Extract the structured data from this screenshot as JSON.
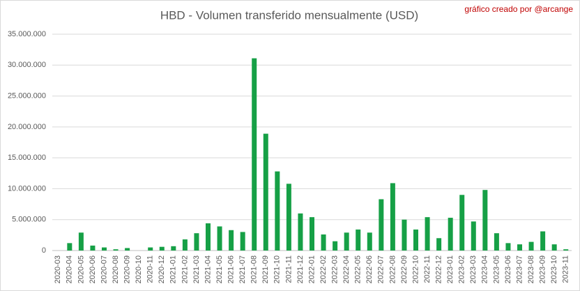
{
  "chart_data": {
    "type": "bar",
    "title": "HBD - Volumen transferido mensualmente (USD)",
    "annotation": "gráfico creado por @arcange",
    "categories": [
      "2020-03",
      "2020-04",
      "2020-05",
      "2020-06",
      "2020-07",
      "2020-08",
      "2020-09",
      "2020-10",
      "2020-11",
      "2020-12",
      "2021-01",
      "2021-02",
      "2021-03",
      "2021-04",
      "2021-05",
      "2021-06",
      "2021-07",
      "2021-08",
      "2021-09",
      "2021-10",
      "2021-11",
      "2021-12",
      "2022-01",
      "2022-02",
      "2022-03",
      "2022-04",
      "2022-05",
      "2022-06",
      "2022-07",
      "2022-08",
      "2022-09",
      "2022-10",
      "2022-11",
      "2022-12",
      "2023-01",
      "2023-02",
      "2023-03",
      "2023-04",
      "2023-05",
      "2023-06",
      "2023-07",
      "2023-08",
      "2023-09",
      "2023-10",
      "2023-11"
    ],
    "values": [
      0,
      1200000,
      2900000,
      800000,
      500000,
      200000,
      400000,
      0,
      500000,
      600000,
      700000,
      1800000,
      2800000,
      4400000,
      3900000,
      3300000,
      3000000,
      31100000,
      18900000,
      12800000,
      10800000,
      6000000,
      5400000,
      2600000,
      1500000,
      2900000,
      3400000,
      2900000,
      8300000,
      10900000,
      5000000,
      3400000,
      5400000,
      2000000,
      5300000,
      9000000,
      4700000,
      9800000,
      2800000,
      1200000,
      1000000,
      1400000,
      3100000,
      1000000,
      200000
    ],
    "color": "#16a046",
    "ylim": [
      0,
      35000000
    ],
    "yticks": [
      0,
      {
        "value": 5000000,
        "label": "5.000.000"
      },
      {
        "value": 10000000,
        "label": "10.000.000"
      },
      {
        "value": 15000000,
        "label": "15.000.000"
      },
      {
        "value": 20000000,
        "label": "20.000.000"
      },
      {
        "value": 25000000,
        "label": "25.000.000"
      },
      {
        "value": 30000000,
        "label": "30.000.000"
      },
      {
        "value": 35000000,
        "label": "35.000.000"
      }
    ],
    "grid": true
  }
}
